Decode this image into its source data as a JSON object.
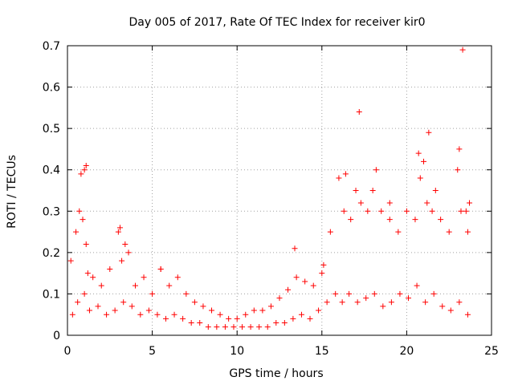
{
  "chart_data": {
    "type": "scatter",
    "title": "Day 005 of 2017, Rate Of TEC Index for receiver kir0",
    "xlabel": "GPS time / hours",
    "ylabel": "ROTI / TECUs",
    "xlim": [
      0,
      25
    ],
    "ylim": [
      0,
      0.7
    ],
    "xticks": [
      0,
      5,
      10,
      15,
      20,
      25
    ],
    "yticks": [
      0,
      0.1,
      0.2,
      0.3,
      0.4,
      0.5,
      0.6,
      0.7
    ],
    "grid": true,
    "marker": "+",
    "color": "#ff0000",
    "series": [
      {
        "x": [
          0.2,
          0.5,
          0.7,
          0.9,
          1.0,
          1.1,
          1.2,
          1.5,
          2.0,
          2.5,
          3.0,
          3.2,
          3.4,
          3.6,
          4.0,
          4.5,
          5.0,
          5.5,
          6.0,
          6.5,
          7.0,
          7.5,
          8.0,
          8.5,
          9.0,
          9.5,
          10.0,
          10.5,
          11.0,
          11.5,
          12.0,
          12.5,
          13.0,
          13.5,
          14.0,
          14.5,
          15.0,
          15.5,
          16.0,
          16.3,
          16.7,
          17.0,
          17.3,
          17.7,
          18.0,
          18.5,
          19.0,
          19.5,
          20.0,
          20.5,
          20.8,
          21.0,
          21.2,
          21.5,
          22.0,
          22.5,
          23.0,
          23.1,
          23.2,
          23.5,
          23.7,
          0.3,
          0.6,
          1.0,
          1.3,
          1.8,
          2.3,
          2.8,
          3.3,
          3.8,
          4.3,
          4.8,
          5.3,
          5.8,
          6.3,
          6.8,
          7.3,
          7.8,
          8.3,
          8.8,
          9.3,
          9.8,
          10.3,
          10.8,
          11.3,
          11.8,
          12.3,
          12.8,
          13.3,
          13.8,
          14.3,
          14.8,
          15.3,
          15.8,
          16.2,
          16.6,
          17.1,
          17.6,
          18.1,
          18.6,
          19.1,
          19.6,
          20.1,
          20.6,
          21.1,
          21.6,
          22.1,
          22.6,
          23.1,
          23.6,
          0.8,
          1.1,
          3.1,
          5.5,
          13.4,
          15.1,
          16.4,
          17.2,
          18.2,
          19.0,
          20.7,
          21.3,
          21.7,
          23.3,
          23.6
        ],
        "y": [
          0.18,
          0.25,
          0.3,
          0.28,
          0.4,
          0.22,
          0.15,
          0.14,
          0.12,
          0.16,
          0.25,
          0.18,
          0.22,
          0.2,
          0.12,
          0.14,
          0.1,
          0.16,
          0.12,
          0.14,
          0.1,
          0.08,
          0.07,
          0.06,
          0.05,
          0.04,
          0.04,
          0.05,
          0.06,
          0.06,
          0.07,
          0.09,
          0.11,
          0.14,
          0.13,
          0.12,
          0.15,
          0.25,
          0.38,
          0.3,
          0.28,
          0.35,
          0.32,
          0.3,
          0.35,
          0.3,
          0.28,
          0.25,
          0.3,
          0.28,
          0.38,
          0.42,
          0.32,
          0.3,
          0.28,
          0.25,
          0.4,
          0.45,
          0.3,
          0.3,
          0.32,
          0.05,
          0.08,
          0.1,
          0.06,
          0.07,
          0.05,
          0.06,
          0.08,
          0.07,
          0.05,
          0.06,
          0.05,
          0.04,
          0.05,
          0.04,
          0.03,
          0.03,
          0.02,
          0.02,
          0.02,
          0.02,
          0.02,
          0.02,
          0.02,
          0.02,
          0.03,
          0.03,
          0.04,
          0.05,
          0.04,
          0.06,
          0.08,
          0.1,
          0.08,
          0.1,
          0.08,
          0.09,
          0.1,
          0.07,
          0.08,
          0.1,
          0.09,
          0.12,
          0.08,
          0.1,
          0.07,
          0.06,
          0.08,
          0.05,
          0.39,
          0.41,
          0.26,
          0.16,
          0.21,
          0.17,
          0.39,
          0.54,
          0.4,
          0.32,
          0.44,
          0.49,
          0.35,
          0.69,
          0.25
        ]
      }
    ]
  }
}
